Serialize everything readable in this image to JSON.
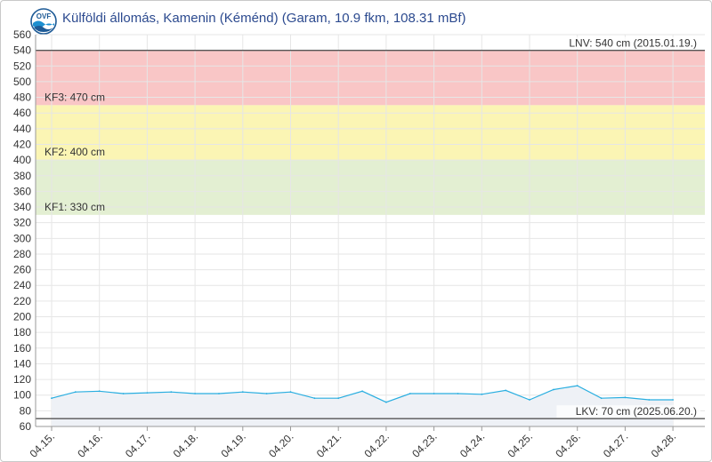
{
  "header": {
    "title": "Külföldi állomás, Kamenin (Kéménd) (Garam, 10.9 fkm, 108.31 mBf)",
    "logo_text": "OVF"
  },
  "chart_data": {
    "type": "line",
    "title": "Külföldi állomás, Kamenin (Kéménd) (Garam, 10.9 fkm, 108.31 mBf)",
    "xlabel": "",
    "ylabel": "",
    "ylim": [
      60,
      560
    ],
    "ytick_step": 20,
    "grid": true,
    "x_tick_labels": [
      "04.15.",
      "04.16.",
      "04.17.",
      "04.18.",
      "04.19.",
      "04.20.",
      "04.21.",
      "04.22.",
      "04.23.",
      "04.24.",
      "04.25.",
      "04.26.",
      "04.27.",
      "04.28."
    ],
    "series": [
      {
        "values": [
          96,
          104,
          105,
          102,
          103,
          104,
          102,
          102,
          104,
          102,
          104,
          96,
          96,
          105,
          91,
          102,
          102,
          102,
          101,
          106,
          94,
          107,
          112,
          96,
          97,
          94,
          94
        ],
        "color": "#29aee0"
      }
    ],
    "bands": [
      {
        "from": 470,
        "to": 540,
        "color": "#f9c6c6"
      },
      {
        "from": 400,
        "to": 470,
        "color": "#fbf5b4"
      },
      {
        "from": 330,
        "to": 400,
        "color": "#e3efd2"
      }
    ],
    "reference_lines": [
      {
        "value": 540,
        "label": "LNV: 540 cm (2015.01.19.)",
        "color": "#555555"
      },
      {
        "value": 470,
        "label": "KF3: 470 cm",
        "color": "#555555"
      },
      {
        "value": 400,
        "label": "KF2: 400 cm",
        "color": "#555555"
      },
      {
        "value": 330,
        "label": "KF1: 330 cm",
        "color": "#555555"
      },
      {
        "value": 70,
        "label": "LKV: 70 cm (2025.06.20.)",
        "color": "#555555"
      }
    ],
    "colors": {
      "grid": "#e6e6e6",
      "axis_text": "#333333",
      "area_fill": "#eef1f6"
    }
  }
}
